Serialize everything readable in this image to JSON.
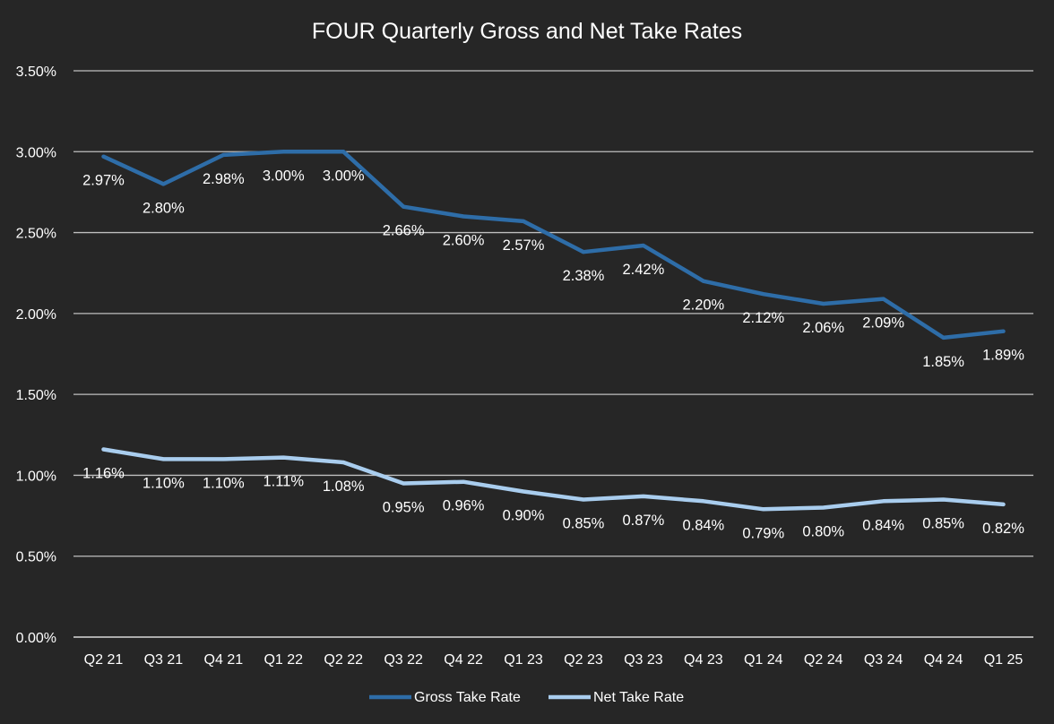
{
  "chart_data": {
    "type": "line",
    "title": "FOUR Quarterly Gross and Net Take Rates",
    "xlabel": "",
    "ylabel": "",
    "categories": [
      "Q2 21",
      "Q3 21",
      "Q4 21",
      "Q1 22",
      "Q2 22",
      "Q3 22",
      "Q4 22",
      "Q1 23",
      "Q2 23",
      "Q3 23",
      "Q4 23",
      "Q1 24",
      "Q2 24",
      "Q3 24",
      "Q4 24",
      "Q1 25"
    ],
    "ylim": [
      0,
      3.5
    ],
    "yticks": [
      0,
      0.5,
      1.0,
      1.5,
      2.0,
      2.5,
      3.0,
      3.5
    ],
    "ytick_labels": [
      "0.00%",
      "0.50%",
      "1.00%",
      "1.50%",
      "2.00%",
      "2.50%",
      "3.00%",
      "3.50%"
    ],
    "grid": true,
    "legend_position": "bottom",
    "series": [
      {
        "name": "Gross Take Rate",
        "color": "#2E6DA8",
        "values": [
          2.97,
          2.8,
          2.98,
          3.0,
          3.0,
          2.66,
          2.6,
          2.57,
          2.38,
          2.42,
          2.2,
          2.12,
          2.06,
          2.09,
          1.85,
          1.89
        ],
        "labels": [
          "2.97%",
          "2.80%",
          "2.98%",
          "3.00%",
          "3.00%",
          "2.66%",
          "2.60%",
          "2.57%",
          "2.38%",
          "2.42%",
          "2.20%",
          "2.12%",
          "2.06%",
          "2.09%",
          "1.85%",
          "1.89%"
        ]
      },
      {
        "name": "Net Take Rate",
        "color": "#A9CDEE",
        "values": [
          1.16,
          1.1,
          1.1,
          1.11,
          1.08,
          0.95,
          0.96,
          0.9,
          0.85,
          0.87,
          0.84,
          0.79,
          0.8,
          0.84,
          0.85,
          0.82
        ],
        "labels": [
          "1.16%",
          "1.10%",
          "1.10%",
          "1.11%",
          "1.08%",
          "0.95%",
          "0.96%",
          "0.90%",
          "0.85%",
          "0.87%",
          "0.84%",
          "0.79%",
          "0.80%",
          "0.84%",
          "0.85%",
          "0.82%"
        ]
      }
    ]
  }
}
